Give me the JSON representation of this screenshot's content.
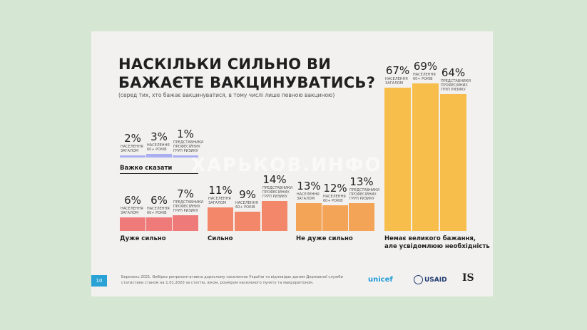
{
  "title_line1": "НАСКІЛЬКИ СИЛЬНО ВИ",
  "title_line2": "БАЖАЄТЕ ВАКЦИНУВАТИСЬ?",
  "subtitle": "(серед тих, хто бажає вакцинуватися, в тому числі лише певною вакциною)",
  "colors": {
    "hard": "#a9aff0",
    "very": "#ef7a7a",
    "strong": "#f2876a",
    "notvery": "#f4a456",
    "nodesire": "#f8be4c"
  },
  "chart_data": {
    "type": "bar",
    "title": "НАСКІЛЬКИ СИЛЬНО ВИ БАЖАЄТЕ ВАКЦИНУВАТИСЬ?",
    "subtitle": "(серед тих, хто бажає вакцинуватися, в тому числі лише певною вакциною)",
    "groups": [
      {
        "name": "Важко сказати",
        "name2": "",
        "values": [
          2,
          3,
          1
        ],
        "labels": [
          "2%",
          "3%",
          "1%"
        ]
      },
      {
        "name": "Дуже сильно",
        "name2": "",
        "values": [
          6,
          6,
          7
        ],
        "labels": [
          "6%",
          "6%",
          "7%"
        ]
      },
      {
        "name": "Сильно",
        "name2": "",
        "values": [
          11,
          9,
          14
        ],
        "labels": [
          "11%",
          "9%",
          "14%"
        ]
      },
      {
        "name": "Не дуже сильно",
        "name2": "",
        "values": [
          13,
          12,
          13
        ],
        "labels": [
          "13%",
          "12%",
          "13%"
        ]
      },
      {
        "name": "Немає великого бажання,",
        "name2": "але усвідомлюю необхідність",
        "values": [
          67,
          69,
          64
        ],
        "labels": [
          "67%",
          "69%",
          "64%"
        ]
      }
    ],
    "series": [
      {
        "l1": "НАСЕЛЕННЯ",
        "l2": "ЗАГАЛОМ",
        "l3": ""
      },
      {
        "l1": "НАСЕЛЕННЯ",
        "l2": "60+ РОКІВ",
        "l3": ""
      },
      {
        "l1": "ПРЕДСТАВНИКИ",
        "l2": "ПРОФЕСІЙНИХ",
        "l3": "ГРУП РИЗИКУ"
      }
    ]
  },
  "footer": {
    "page_number": "10",
    "note": "Березень 2021. Вибірка репрезентативна дорослому населенню України та відповідає даним Державної служби статистики станом на 1.01.2020 за статтю, віком, розміром населеного пункту та макрорегіоном.",
    "logo_unicef": "unicef",
    "logo_usaid": "USAID",
    "logo_is": "IS"
  },
  "watermark": "ХАРЬКОВ.ИНФО"
}
